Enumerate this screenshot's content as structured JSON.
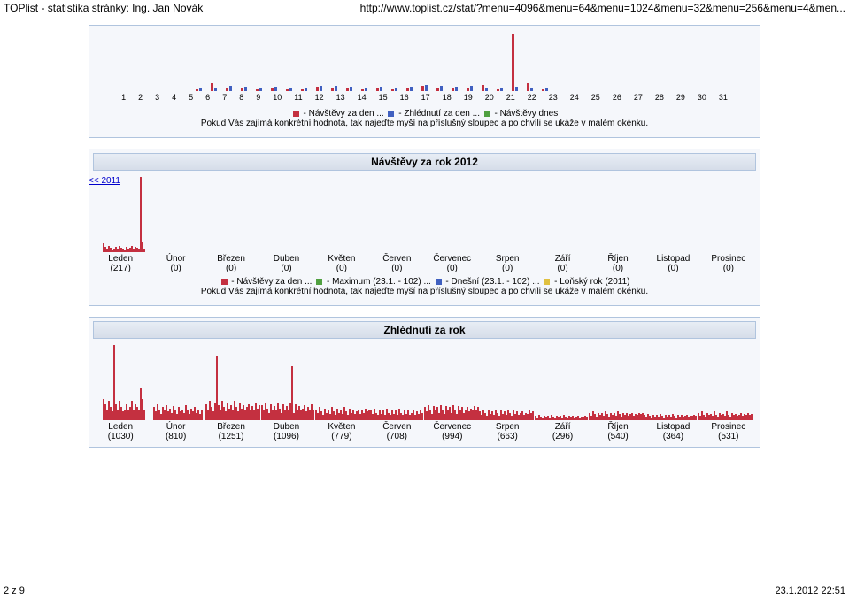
{
  "header": {
    "left": "TOPlist - statistika stránky: Ing. Jan Novák",
    "right": "http://www.toplist.cz/stat/?menu=4096&menu=64&menu=1024&menu=32&menu=256&menu=4&men..."
  },
  "days_chart": {
    "labels": [
      "1",
      "2",
      "3",
      "4",
      "5",
      "6",
      "7",
      "8",
      "9",
      "10",
      "11",
      "12",
      "13",
      "14",
      "15",
      "16",
      "17",
      "18",
      "19",
      "20",
      "21",
      "22",
      "23",
      "24",
      "25",
      "26",
      "27",
      "28",
      "29",
      "30",
      "31"
    ],
    "visits": [
      2,
      10,
      4,
      3,
      2,
      3,
      2,
      2,
      5,
      4,
      3,
      2,
      3,
      2,
      3,
      6,
      4,
      3,
      4,
      8,
      2,
      70,
      10,
      2,
      0,
      0,
      0,
      0,
      0,
      0,
      0
    ],
    "pageviews": [
      3,
      3,
      6,
      5,
      4,
      5,
      3,
      3,
      7,
      6,
      5,
      4,
      5,
      3,
      5,
      8,
      6,
      5,
      6,
      3,
      3,
      5,
      3,
      3,
      0,
      0,
      0,
      0,
      0,
      0,
      0
    ],
    "legend": {
      "l1": " - Návštěvy za den ... ",
      "l2": " - Zhlédnutí za den ... ",
      "l3": " - Návštěvy dnes",
      "note": "Pokud Vás zajímá konkrétní hodnota, tak najeďte myší na příslušný sloupec a po chvíli se ukáže v malém okénku."
    }
  },
  "year_visits": {
    "title": "Návštěvy za rok 2012",
    "year_link": "<< 2011",
    "months": [
      {
        "label": "Leden",
        "count": "(217)",
        "spikes": [
          8,
          5,
          3,
          6,
          4,
          2,
          3,
          5,
          3,
          6,
          4,
          3,
          2,
          5,
          3,
          4,
          6,
          3,
          5,
          4,
          3,
          70,
          10,
          3
        ]
      },
      {
        "label": "Únor",
        "count": "(0)",
        "spikes": []
      },
      {
        "label": "Březen",
        "count": "(0)",
        "spikes": []
      },
      {
        "label": "Duben",
        "count": "(0)",
        "spikes": []
      },
      {
        "label": "Květen",
        "count": "(0)",
        "spikes": []
      },
      {
        "label": "Červen",
        "count": "(0)",
        "spikes": []
      },
      {
        "label": "Červenec",
        "count": "(0)",
        "spikes": []
      },
      {
        "label": "Srpen",
        "count": "(0)",
        "spikes": []
      },
      {
        "label": "Září",
        "count": "(0)",
        "spikes": []
      },
      {
        "label": "Říjen",
        "count": "(0)",
        "spikes": []
      },
      {
        "label": "Listopad",
        "count": "(0)",
        "spikes": []
      },
      {
        "label": "Prosinec",
        "count": "(0)",
        "spikes": []
      }
    ],
    "legend": {
      "l1": " - Návštěvy za den ... ",
      "l2": " - Maximum (23.1. - 102) ... ",
      "l3": " - Dnešní (23.1. - 102) ... ",
      "l4": " - Loňský rok (2011)",
      "note": "Pokud Vás zajímá konkrétní hodnota, tak najeďte myší na příslušný sloupec a po chvíli se ukáže v malém okénku."
    }
  },
  "year_pageviews": {
    "title": "Zhlédnutí za rok",
    "months": [
      {
        "label": "Leden",
        "count": "(1030)",
        "spikes": [
          20,
          15,
          10,
          18,
          12,
          8,
          70,
          15,
          10,
          18,
          12,
          8,
          10,
          15,
          10,
          12,
          18,
          10,
          15,
          12,
          10,
          30,
          20,
          10
        ]
      },
      {
        "label": "Únor",
        "count": "(810)",
        "spikes": [
          12,
          8,
          15,
          10,
          6,
          12,
          9,
          14,
          8,
          11,
          7,
          13,
          9,
          6,
          12,
          8,
          10,
          7,
          14,
          9,
          6,
          11,
          8,
          12,
          7,
          10,
          6,
          9
        ]
      },
      {
        "label": "Březen",
        "count": "(1251)",
        "spikes": [
          15,
          10,
          18,
          12,
          8,
          16,
          60,
          14,
          10,
          18,
          12,
          8,
          16,
          11,
          14,
          10,
          18,
          12,
          8,
          16,
          11,
          14,
          10,
          12,
          15,
          9,
          13,
          10,
          16,
          11,
          14
        ]
      },
      {
        "label": "Duben",
        "count": "(1096)",
        "spikes": [
          14,
          9,
          16,
          11,
          7,
          15,
          10,
          13,
          9,
          16,
          11,
          7,
          15,
          10,
          13,
          9,
          16,
          50,
          7,
          15,
          10,
          13,
          9,
          11,
          14,
          8,
          12,
          9,
          15,
          10
        ]
      },
      {
        "label": "Květen",
        "count": "(779)",
        "spikes": [
          10,
          7,
          12,
          8,
          5,
          11,
          7,
          10,
          6,
          12,
          8,
          5,
          11,
          7,
          10,
          6,
          12,
          8,
          5,
          11,
          7,
          10,
          6,
          8,
          10,
          6,
          9,
          7,
          11,
          8,
          10
        ]
      },
      {
        "label": "Červen",
        "count": "(708)",
        "spikes": [
          9,
          6,
          11,
          7,
          5,
          10,
          6,
          9,
          5,
          11,
          7,
          5,
          10,
          6,
          9,
          5,
          11,
          7,
          5,
          10,
          6,
          9,
          5,
          7,
          9,
          5,
          8,
          6,
          10,
          7
        ]
      },
      {
        "label": "Červenec",
        "count": "(994)",
        "spikes": [
          12,
          8,
          14,
          10,
          6,
          13,
          9,
          12,
          7,
          14,
          10,
          6,
          13,
          9,
          12,
          7,
          14,
          10,
          6,
          13,
          9,
          12,
          7,
          10,
          12,
          8,
          11,
          9,
          13,
          10,
          12
        ]
      },
      {
        "label": "Srpen",
        "count": "(663)",
        "spikes": [
          8,
          5,
          10,
          7,
          4,
          9,
          6,
          8,
          5,
          10,
          7,
          4,
          9,
          6,
          8,
          5,
          10,
          7,
          4,
          9,
          6,
          8,
          5,
          7,
          8,
          5,
          7,
          6,
          9,
          7,
          8
        ]
      },
      {
        "label": "Září",
        "count": "(296)",
        "spikes": [
          4,
          2,
          5,
          3,
          2,
          4,
          3,
          4,
          2,
          5,
          3,
          2,
          4,
          3,
          4,
          2,
          5,
          3,
          2,
          4,
          3,
          4,
          2,
          3,
          4,
          2,
          3,
          3,
          4,
          3
        ]
      },
      {
        "label": "Říjen",
        "count": "(540)",
        "spikes": [
          7,
          4,
          8,
          6,
          3,
          7,
          5,
          7,
          4,
          8,
          6,
          3,
          7,
          5,
          7,
          4,
          8,
          6,
          3,
          7,
          5,
          7,
          4,
          6,
          7,
          4,
          6,
          5,
          7,
          6,
          7
        ]
      },
      {
        "label": "Listopad",
        "count": "(364)",
        "spikes": [
          5,
          3,
          6,
          4,
          2,
          5,
          3,
          5,
          3,
          6,
          4,
          2,
          5,
          3,
          5,
          3,
          6,
          4,
          2,
          5,
          3,
          5,
          3,
          4,
          5,
          3,
          4,
          4,
          5,
          4
        ]
      },
      {
        "label": "Prosinec",
        "count": "(531)",
        "spikes": [
          7,
          4,
          8,
          5,
          3,
          7,
          5,
          6,
          4,
          8,
          5,
          3,
          7,
          5,
          6,
          4,
          8,
          5,
          3,
          7,
          5,
          6,
          4,
          5,
          7,
          4,
          6,
          5,
          7,
          5,
          6
        ]
      }
    ]
  },
  "footer": {
    "left": "2 z 9",
    "right": "23.1.2012 22:51"
  }
}
